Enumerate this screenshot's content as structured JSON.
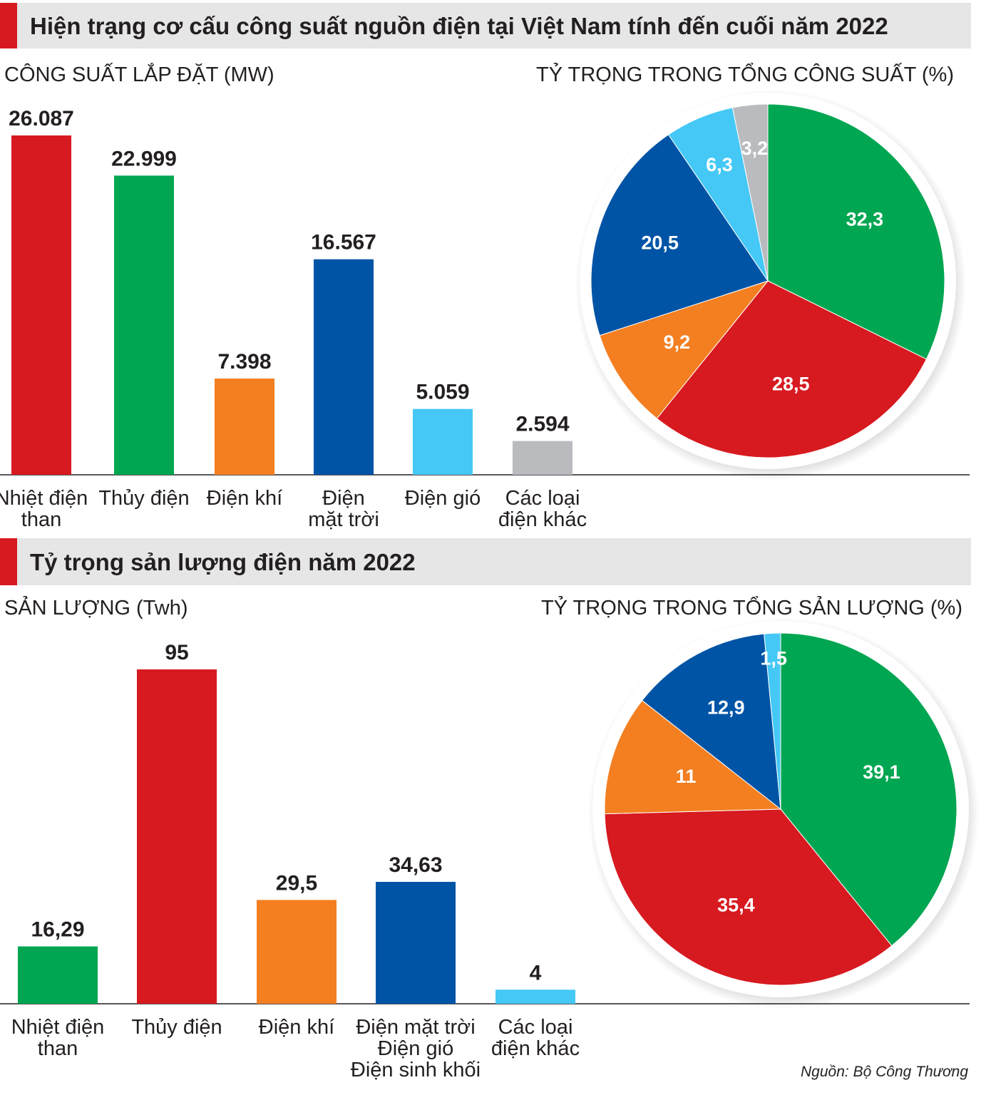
{
  "source": "Nguồn: Bộ Công Thương",
  "colors": {
    "red": "#d71920",
    "green": "#00a651",
    "orange": "#f37f21",
    "blue": "#0054a6",
    "light_blue": "#45c8f5",
    "gray": "#b9bbbe",
    "header_bg": "#e6e6e6"
  },
  "chart_data": [
    {
      "type": "bar",
      "section_title": "Hiện trạng cơ cấu công suất nguồn điện tại Việt Nam tính đến cuối năm 2022",
      "ylabel": "CÔNG SUẤT LẮP ĐẶT (MW)",
      "categories": [
        [
          "Nhiệt điện",
          "than"
        ],
        [
          "Thủy điện"
        ],
        [
          "Điện khí"
        ],
        [
          "Điện",
          "mặt trời"
        ],
        [
          "Điện gió"
        ],
        [
          "Các loại",
          "điện khác"
        ]
      ],
      "values": [
        26087,
        22999,
        7398,
        16567,
        5059,
        2594
      ],
      "labels": [
        "26.087",
        "22.999",
        "7.398",
        "16.567",
        "5.059",
        "2.594"
      ],
      "colors": [
        "#d71920",
        "#00a651",
        "#f37f21",
        "#0054a6",
        "#45c8f5",
        "#b9bbbe"
      ]
    },
    {
      "type": "pie",
      "title": "TỶ TRỌNG TRONG TỔNG CÔNG SUẤT (%)",
      "values": [
        32.3,
        28.5,
        9.2,
        20.5,
        6.3,
        3.2
      ],
      "labels": [
        "32,3",
        "28,5",
        "9,2",
        "20,5",
        "6,3",
        "3,2"
      ],
      "colors": [
        "#00a651",
        "#d71920",
        "#f37f21",
        "#0054a6",
        "#45c8f5",
        "#b9bbbe"
      ]
    },
    {
      "type": "bar",
      "section_title": "Tỷ trọng sản lượng điện năm 2022",
      "ylabel": "SẢN LƯỢNG (Twh)",
      "categories": [
        [
          "Nhiệt điện",
          "than"
        ],
        [
          "Thủy điện"
        ],
        [
          "Điện khí"
        ],
        [
          "Điện mặt trời",
          "Điện gió",
          "Điện sinh khối"
        ],
        [
          "Các loại",
          "điện khác"
        ]
      ],
      "values": [
        16.29,
        95,
        29.5,
        34.63,
        4
      ],
      "labels": [
        "16,29",
        "95",
        "29,5",
        "34,63",
        "4"
      ],
      "colors": [
        "#00a651",
        "#d71920",
        "#f37f21",
        "#0054a6",
        "#45c8f5"
      ]
    },
    {
      "type": "pie",
      "title": "TỶ TRỌNG TRONG TỔNG SẢN LƯỢNG (%)",
      "values": [
        39.1,
        35.4,
        11,
        12.9,
        1.5
      ],
      "labels": [
        "39,1",
        "35,4",
        "11",
        "12,9",
        "1,5"
      ],
      "colors": [
        "#00a651",
        "#d71920",
        "#f37f21",
        "#0054a6",
        "#45c8f5"
      ]
    }
  ]
}
